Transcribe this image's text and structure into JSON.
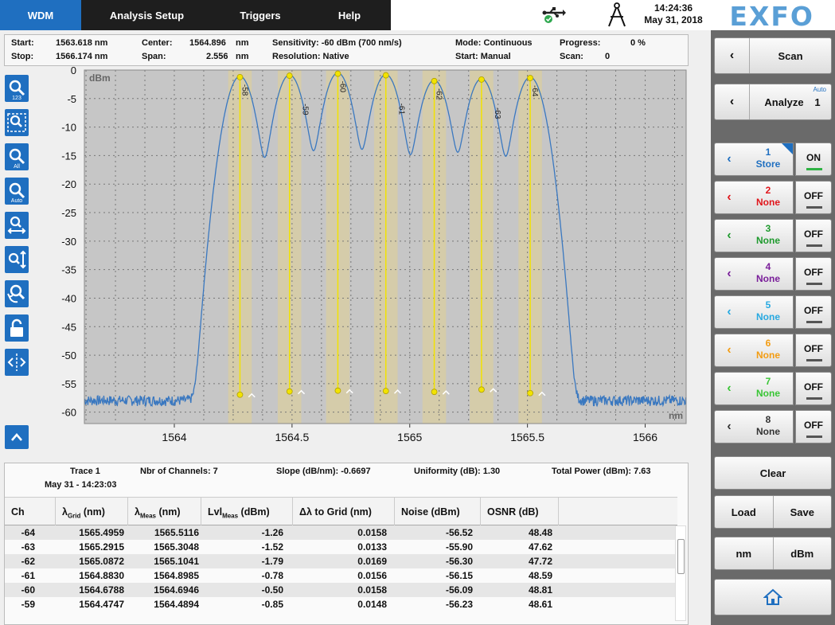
{
  "tabs": [
    {
      "label": "WDM",
      "active": true
    },
    {
      "label": "Analysis Setup",
      "active": false
    },
    {
      "label": "Triggers",
      "active": false
    },
    {
      "label": "Help",
      "active": false
    }
  ],
  "status": {
    "time": "14:24:36",
    "date": "May 31, 2018",
    "logo": "EXFO",
    "usb_icon": "usb-connected-icon",
    "compass_icon": "compass-icon"
  },
  "info": {
    "start_label": "Start:",
    "start_value": "1563.618 nm",
    "stop_label": "Stop:",
    "stop_value": "1566.174 nm",
    "center_label": "Center:",
    "center_value": "1564.896",
    "center_unit": "nm",
    "span_label": "Span:",
    "span_value": "2.556",
    "span_unit": "nm",
    "sensitivity": "Sensitivity: -60 dBm (700 nm/s)",
    "resolution": "Resolution: Native",
    "mode": "Mode: Continuous",
    "start_mode": "Start: Manual",
    "progress_label": "Progress:",
    "progress_value": "0 %",
    "scan_label": "Scan:",
    "scan_value": "0"
  },
  "toolbar": {
    "zoom_123_sub": "123",
    "zoom_all_sub": "All",
    "zoom_auto_sub": "Auto"
  },
  "chart_data": {
    "type": "line",
    "ylabel": "dBm",
    "xlabel": "nm",
    "xlim": [
      1563.618,
      1566.174
    ],
    "ylim": [
      -62,
      0
    ],
    "x_ticks": [
      "1564",
      "1564.5",
      "1565",
      "1565.5",
      "1566"
    ],
    "x_tick_values": [
      1564,
      1564.5,
      1565,
      1565.5,
      1566
    ],
    "y_ticks": [
      "0",
      "-5",
      "-10",
      "-15",
      "-20",
      "-25",
      "-30",
      "-35",
      "-40",
      "-45",
      "-50",
      "-55",
      "-60"
    ],
    "y_tick_values": [
      0,
      -5,
      -10,
      -15,
      -20,
      -25,
      -30,
      -35,
      -40,
      -45,
      -50,
      -55,
      -60
    ],
    "grid": true,
    "trace_color": "#3a78c0",
    "marker_color": "#f2e300",
    "noise_floor": -59.5,
    "peak_width_nm": 0.062,
    "channels": [
      {
        "label": "-58",
        "x": 1564.2788,
        "peak": -1.1,
        "noise": -56.8
      },
      {
        "label": "-59",
        "x": 1564.4894,
        "peak": -0.85,
        "noise": -56.23
      },
      {
        "label": "-60",
        "x": 1564.6946,
        "peak": -0.5,
        "noise": -56.09
      },
      {
        "label": "-61",
        "x": 1564.8985,
        "peak": -0.78,
        "noise": -56.15
      },
      {
        "label": "-62",
        "x": 1565.1041,
        "peak": -1.79,
        "noise": -56.3
      },
      {
        "label": "-63",
        "x": 1565.3048,
        "peak": -1.52,
        "noise": -55.9
      },
      {
        "label": "-64",
        "x": 1565.5116,
        "peak": -1.26,
        "noise": -56.52
      }
    ]
  },
  "summary": {
    "trace": "Trace 1",
    "timestamp": "May 31 - 14:23:03",
    "channels": "Nbr of Channels: 7",
    "slope": "Slope (dB/nm): -0.6697",
    "uniformity": "Uniformity (dB): 1.30",
    "total_power": "Total Power (dBm): 7.63"
  },
  "table": {
    "headers": {
      "ch": "Ch",
      "grid_pre": "λ",
      "grid_sub": "Grid",
      "grid_post": " (nm)",
      "meas_pre": "λ",
      "meas_sub": "Meas",
      "meas_post": " (nm)",
      "lvl_pre": "Lvl",
      "lvl_sub": "Meas",
      "lvl_post": " (dBm)",
      "delta": "Δλ to Grid (nm)",
      "noise": "Noise (dBm)",
      "osnr": "OSNR (dB)"
    },
    "rows": [
      [
        "-64",
        "1565.4959",
        "1565.5116",
        "-1.26",
        "0.0158",
        "-56.52",
        "48.48"
      ],
      [
        "-63",
        "1565.2915",
        "1565.3048",
        "-1.52",
        "0.0133",
        "-55.90",
        "47.62"
      ],
      [
        "-62",
        "1565.0872",
        "1565.1041",
        "-1.79",
        "0.0169",
        "-56.30",
        "47.72"
      ],
      [
        "-61",
        "1564.8830",
        "1564.8985",
        "-0.78",
        "0.0156",
        "-56.15",
        "48.59"
      ],
      [
        "-60",
        "1564.6788",
        "1564.6946",
        "-0.50",
        "0.0158",
        "-56.09",
        "48.81"
      ],
      [
        "-59",
        "1564.4747",
        "1564.4894",
        "-0.85",
        "0.0148",
        "-56.23",
        "48.61"
      ]
    ]
  },
  "right_panel": {
    "scan_label": "Scan",
    "analyze_label": "Analyze",
    "analyze_count": "1",
    "analyze_auto": "Auto",
    "traces": [
      {
        "num": "1",
        "state": "Store",
        "toggle": "ON",
        "color": "#1f6fc0"
      },
      {
        "num": "2",
        "state": "None",
        "toggle": "OFF",
        "color": "#e0151b"
      },
      {
        "num": "3",
        "state": "None",
        "toggle": "OFF",
        "color": "#1f9a2e"
      },
      {
        "num": "4",
        "state": "None",
        "toggle": "OFF",
        "color": "#7a1f9a"
      },
      {
        "num": "5",
        "state": "None",
        "toggle": "OFF",
        "color": "#27a9e1"
      },
      {
        "num": "6",
        "state": "None",
        "toggle": "OFF",
        "color": "#f39c12"
      },
      {
        "num": "7",
        "state": "None",
        "toggle": "OFF",
        "color": "#39c535"
      },
      {
        "num": "8",
        "state": "None",
        "toggle": "OFF",
        "color": "#333333"
      }
    ],
    "clear_label": "Clear",
    "load_label": "Load",
    "save_label": "Save",
    "unit_nm": "nm",
    "unit_dbm": "dBm",
    "home_icon": "home-icon"
  }
}
